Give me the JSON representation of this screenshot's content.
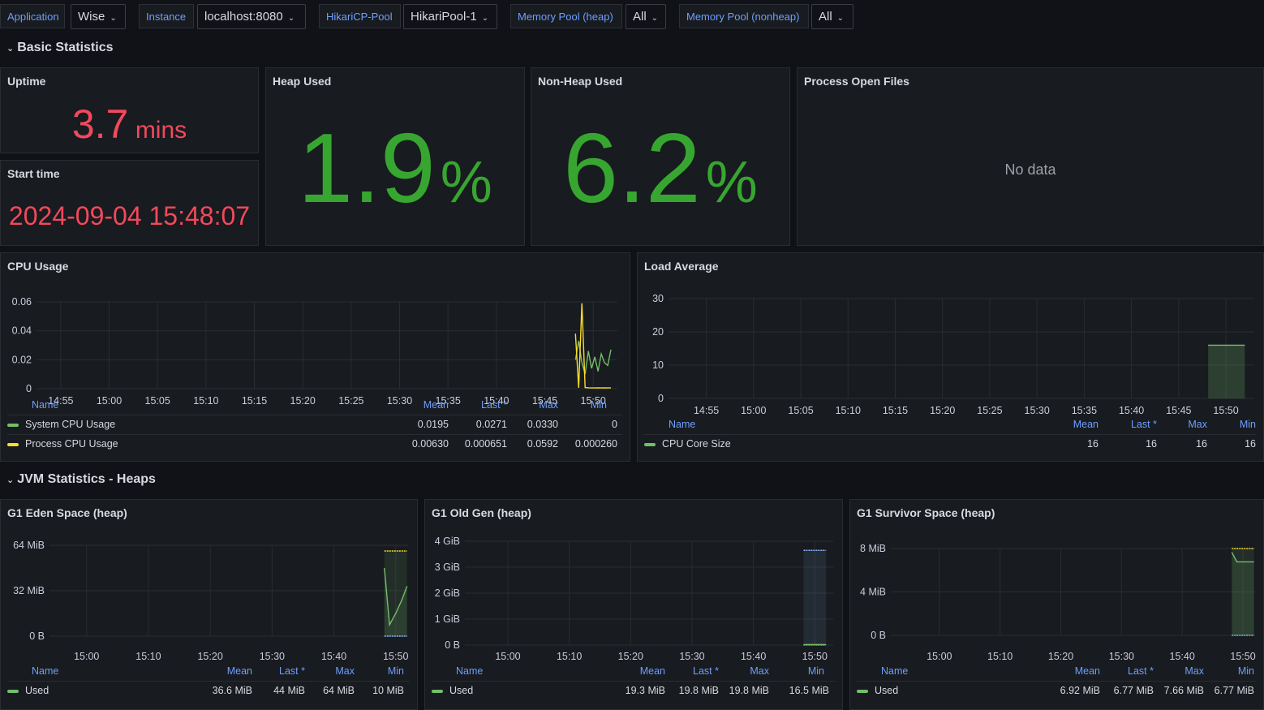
{
  "variables": [
    {
      "label": "Application",
      "value": "Wise"
    },
    {
      "label": "Instance",
      "value": "localhost:8080"
    },
    {
      "label": "HikariCP-Pool",
      "value": "HikariPool-1"
    },
    {
      "label": "Memory Pool (heap)",
      "value": "All"
    },
    {
      "label": "Memory Pool (nonheap)",
      "value": "All"
    }
  ],
  "rows": {
    "basic": "Basic Statistics",
    "jvm_heaps": "JVM Statistics - Heaps"
  },
  "uptime": {
    "title": "Uptime",
    "value": "3.7",
    "unit": "mins"
  },
  "start_time": {
    "title": "Start time",
    "value": "2024-09-04 15:48:07"
  },
  "heap_used": {
    "title": "Heap Used",
    "value": "1.9",
    "unit": "%"
  },
  "nonheap_used": {
    "title": "Non-Heap Used",
    "value": "6.2",
    "unit": "%"
  },
  "open_files": {
    "title": "Process Open Files",
    "value": "No data"
  },
  "legend_headers": {
    "name": "Name",
    "mean": "Mean",
    "last": "Last *",
    "max": "Max",
    "min": "Min"
  },
  "colors": {
    "green": "#73bf69",
    "yellow": "#fade2a",
    "blue": "#8ab8ff",
    "red": "#f2495c",
    "stat_green": "#37a630"
  },
  "chart_data": [
    {
      "id": "cpu",
      "type": "line",
      "title": "CPU Usage",
      "y_ticks": [
        "0.06",
        "0.04",
        "0.02",
        "0"
      ],
      "x_ticks": [
        "14:55",
        "15:00",
        "15:05",
        "15:10",
        "15:15",
        "15:20",
        "15:25",
        "15:30",
        "15:35",
        "15:40",
        "15:45",
        "15:50"
      ],
      "ylim": [
        0,
        0.06
      ],
      "series": [
        {
          "name": "System CPU Usage",
          "color": "#73bf69",
          "mean": "0.0195",
          "last": "0.0271",
          "max": "0.0330",
          "min": "0",
          "x": [
            "15:48:10",
            "15:48:30",
            "15:48:50",
            "15:49:10",
            "15:49:30",
            "15:49:50",
            "15:50:10",
            "15:50:30",
            "15:50:50",
            "15:51:10",
            "15:51:30",
            "15:51:50"
          ],
          "values": [
            0.02,
            0.033,
            0.018,
            0.01,
            0.026,
            0.014,
            0.022,
            0.012,
            0.024,
            0.018,
            0.016,
            0.027
          ]
        },
        {
          "name": "Process CPU Usage",
          "color": "#fade2a",
          "mean": "0.00630",
          "last": "0.000651",
          "max": "0.0592",
          "min": "0.000260",
          "x": [
            "15:48:10",
            "15:48:30",
            "15:48:50",
            "15:49:10",
            "15:49:30",
            "15:49:50",
            "15:50:10",
            "15:50:30",
            "15:50:50",
            "15:51:10",
            "15:51:30",
            "15:51:50"
          ],
          "values": [
            0.038,
            0.0006,
            0.059,
            0.0008,
            0.0006,
            0.0005,
            0.0005,
            0.0006,
            0.0005,
            0.0006,
            0.0005,
            0.0006
          ]
        }
      ]
    },
    {
      "id": "load",
      "type": "area",
      "title": "Load Average",
      "y_ticks": [
        "30",
        "20",
        "10",
        "0"
      ],
      "x_ticks": [
        "14:55",
        "15:00",
        "15:05",
        "15:10",
        "15:15",
        "15:20",
        "15:25",
        "15:30",
        "15:35",
        "15:40",
        "15:45",
        "15:50"
      ],
      "ylim": [
        0,
        30
      ],
      "series": [
        {
          "name": "CPU Core Size",
          "color": "#73bf69",
          "mean": "16",
          "last": "16",
          "max": "16",
          "min": "16",
          "x": [
            "15:48:07",
            "15:52:00"
          ],
          "values": [
            16,
            16
          ]
        }
      ]
    },
    {
      "id": "eden",
      "type": "area",
      "title": "G1 Eden Space (heap)",
      "y_ticks": [
        "64 MiB",
        "32 MiB",
        "0 B"
      ],
      "x_ticks": [
        "15:00",
        "15:10",
        "15:20",
        "15:30",
        "15:40",
        "15:50"
      ],
      "ylim": [
        0,
        80
      ],
      "series": [
        {
          "name": "Used",
          "color": "#73bf69",
          "mean": "36.6 MiB",
          "last": "44 MiB",
          "max": "64 MiB",
          "min": "10 MiB",
          "x": [
            "15:48:10",
            "15:49:00",
            "15:50:00",
            "15:51:00",
            "15:51:50"
          ],
          "values": [
            60,
            10,
            20,
            32,
            44
          ]
        }
      ]
    },
    {
      "id": "oldgen",
      "type": "area",
      "title": "G1 Old Gen (heap)",
      "y_ticks": [
        "4 GiB",
        "3 GiB",
        "2 GiB",
        "1 GiB",
        "0 B"
      ],
      "x_ticks": [
        "15:00",
        "15:10",
        "15:20",
        "15:30",
        "15:40",
        "15:50"
      ],
      "ylim": [
        0,
        4
      ],
      "series": [
        {
          "name": "Used",
          "color": "#73bf69",
          "mean": "19.3 MiB",
          "last": "19.8 MiB",
          "max": "19.8 MiB",
          "min": "16.5 MiB",
          "x": [
            "15:48:10",
            "15:51:50"
          ],
          "values": [
            0.02,
            0.02
          ]
        }
      ]
    },
    {
      "id": "survivor",
      "type": "area",
      "title": "G1 Survivor Space (heap)",
      "y_ticks": [
        "8 MiB",
        "4 MiB",
        "0 B"
      ],
      "x_ticks": [
        "15:00",
        "15:10",
        "15:20",
        "15:30",
        "15:40",
        "15:50"
      ],
      "ylim": [
        0,
        8
      ],
      "series": [
        {
          "name": "Used",
          "color": "#73bf69",
          "mean": "6.92 MiB",
          "last": "6.77 MiB",
          "max": "7.66 MiB",
          "min": "6.77 MiB",
          "x": [
            "15:48:10",
            "15:49:00",
            "15:51:50"
          ],
          "values": [
            7.66,
            6.77,
            6.77
          ]
        }
      ]
    }
  ]
}
